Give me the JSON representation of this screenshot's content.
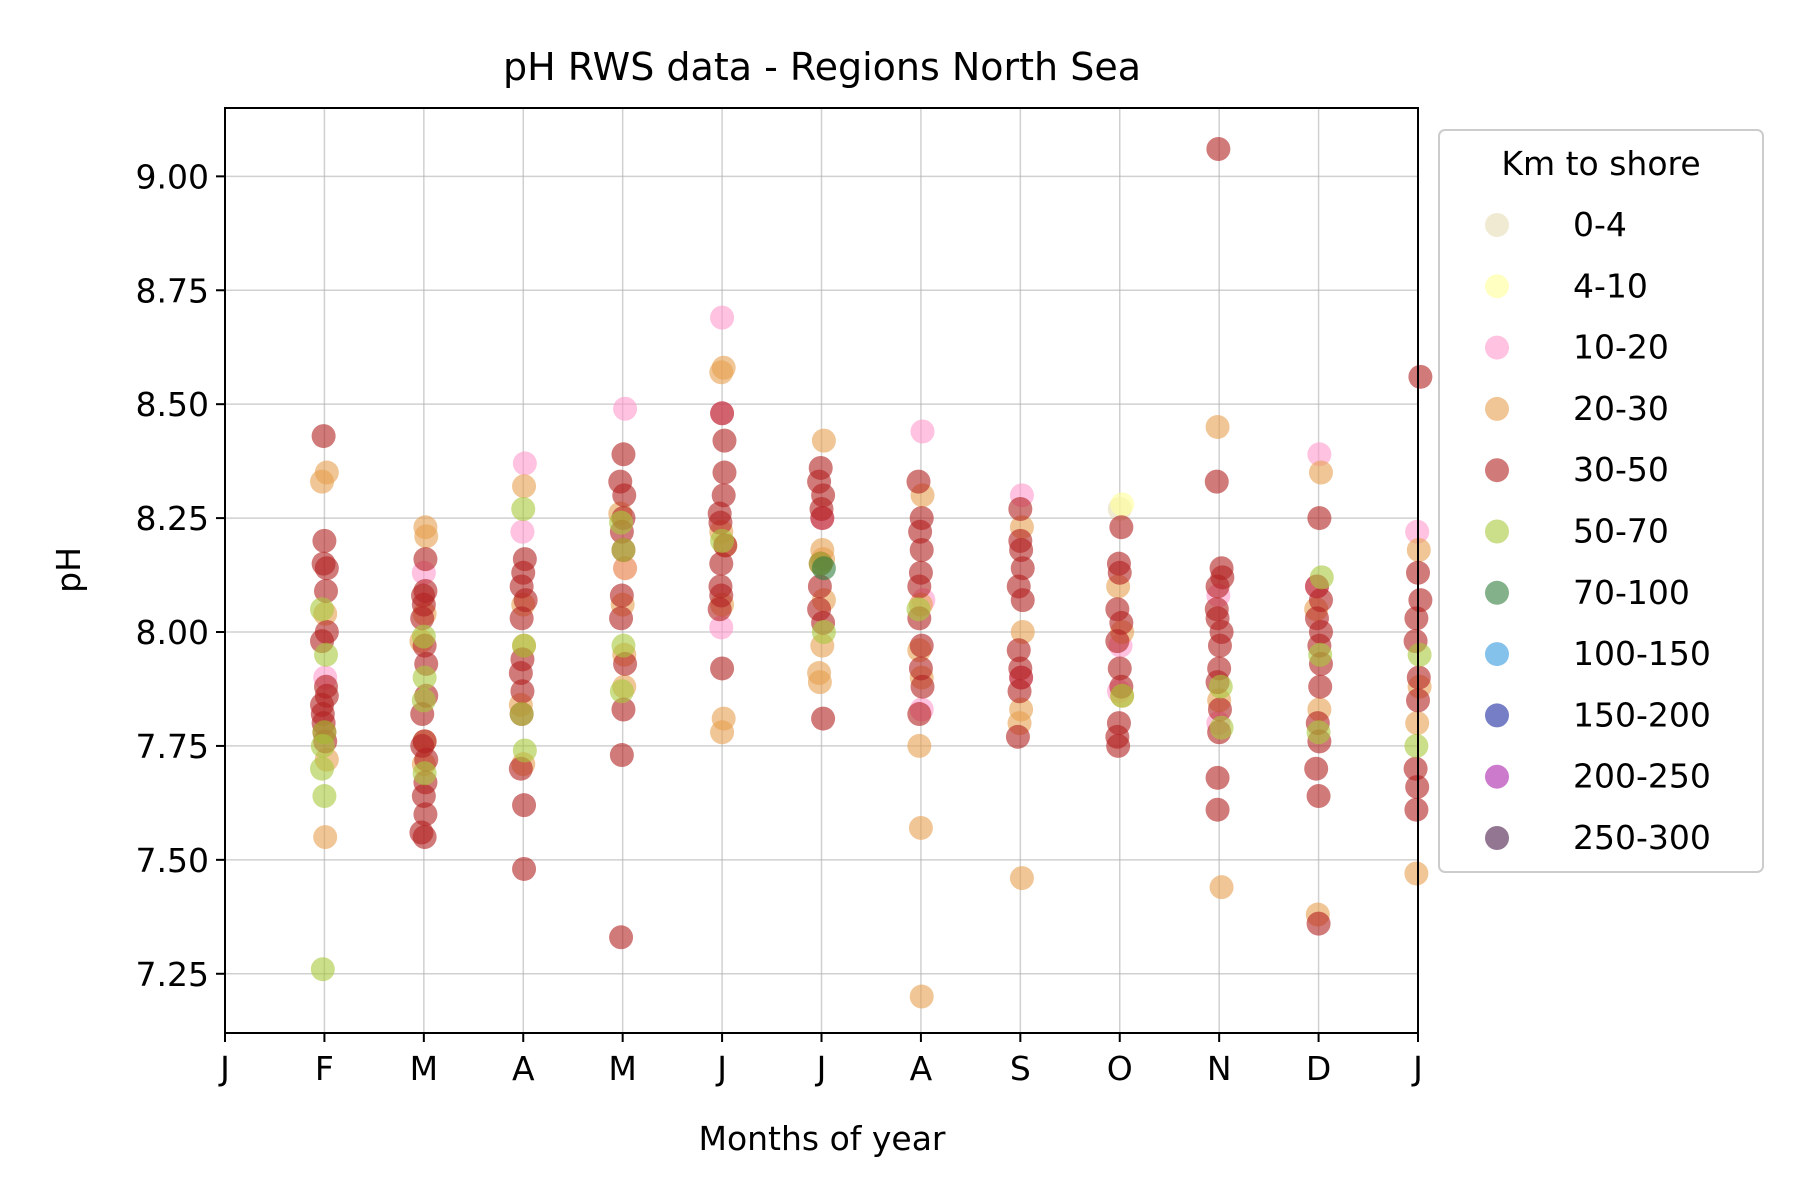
{
  "chart_data": {
    "type": "scatter",
    "title": "pH RWS data - Regions North Sea",
    "xlabel": "Months of year",
    "ylabel": "pH",
    "x_ticks": [
      "J",
      "F",
      "M",
      "A",
      "M",
      "J",
      "J",
      "A",
      "S",
      "O",
      "N",
      "D",
      "J"
    ],
    "xlim": [
      0,
      12
    ],
    "ylim": [
      7.12,
      9.15
    ],
    "y_ticks": [
      "7.25",
      "7.50",
      "7.75",
      "8.00",
      "8.25",
      "8.50",
      "8.75",
      "9.00"
    ],
    "y_tick_values": [
      7.25,
      7.5,
      7.75,
      8.0,
      8.25,
      8.5,
      8.75,
      9.0
    ],
    "grid": true,
    "legend_title": "Km to shore",
    "legend_position": "outside-right",
    "series": [
      {
        "name": "0-4",
        "color": "#e6dcb4",
        "points": [
          [
            9.0,
            8.27
          ]
        ]
      },
      {
        "name": "4-10",
        "color": "#ffff99",
        "points": [
          [
            9.0,
            8.28
          ]
        ]
      },
      {
        "name": "10-20",
        "color": "#ff99cc",
        "points": [
          [
            1.0,
            7.9
          ],
          [
            2.0,
            8.13
          ],
          [
            3.0,
            8.22
          ],
          [
            3.0,
            8.37
          ],
          [
            4.0,
            8.49
          ],
          [
            4.0,
            8.14
          ],
          [
            5.0,
            8.69
          ],
          [
            5.0,
            8.48
          ],
          [
            5.0,
            8.01
          ],
          [
            6.0,
            8.25
          ],
          [
            7.0,
            8.44
          ],
          [
            7.0,
            8.07
          ],
          [
            7.0,
            7.83
          ],
          [
            8.0,
            8.3
          ],
          [
            8.0,
            7.9
          ],
          [
            9.0,
            7.97
          ],
          [
            9.0,
            7.87
          ],
          [
            10.0,
            8.08
          ],
          [
            10.0,
            7.8
          ],
          [
            11.0,
            8.39
          ],
          [
            11.0,
            8.1
          ],
          [
            12.0,
            8.22
          ]
        ]
      },
      {
        "name": "20-30",
        "color": "#e8a050",
        "points": [
          [
            1.0,
            8.35
          ],
          [
            1.0,
            8.33
          ],
          [
            1.0,
            8.04
          ],
          [
            1.0,
            7.72
          ],
          [
            1.0,
            7.55
          ],
          [
            2.0,
            8.23
          ],
          [
            2.0,
            8.21
          ],
          [
            2.0,
            8.04
          ],
          [
            2.0,
            7.98
          ],
          [
            2.0,
            7.76
          ],
          [
            2.0,
            7.71
          ],
          [
            3.0,
            8.32
          ],
          [
            3.0,
            8.06
          ],
          [
            3.0,
            7.97
          ],
          [
            3.0,
            7.84
          ],
          [
            3.0,
            7.71
          ],
          [
            4.0,
            8.26
          ],
          [
            4.0,
            8.14
          ],
          [
            4.0,
            8.06
          ],
          [
            4.0,
            7.95
          ],
          [
            4.0,
            7.88
          ],
          [
            5.0,
            8.58
          ],
          [
            5.0,
            8.57
          ],
          [
            5.0,
            8.22
          ],
          [
            5.0,
            8.19
          ],
          [
            5.0,
            8.06
          ],
          [
            5.0,
            7.81
          ],
          [
            5.0,
            7.78
          ],
          [
            6.0,
            8.42
          ],
          [
            6.0,
            8.18
          ],
          [
            6.0,
            8.16
          ],
          [
            6.0,
            8.07
          ],
          [
            6.0,
            7.97
          ],
          [
            6.0,
            7.91
          ],
          [
            6.0,
            7.89
          ],
          [
            7.0,
            8.3
          ],
          [
            7.0,
            8.06
          ],
          [
            7.0,
            7.96
          ],
          [
            7.0,
            7.9
          ],
          [
            7.0,
            7.75
          ],
          [
            7.0,
            7.57
          ],
          [
            7.0,
            7.2
          ],
          [
            8.0,
            8.23
          ],
          [
            8.0,
            8.0
          ],
          [
            8.0,
            7.83
          ],
          [
            8.0,
            7.8
          ],
          [
            8.0,
            7.46
          ],
          [
            9.0,
            8.1
          ],
          [
            9.0,
            8.0
          ],
          [
            9.0,
            7.86
          ],
          [
            10.0,
            8.45
          ],
          [
            10.0,
            7.85
          ],
          [
            10.0,
            7.44
          ],
          [
            11.0,
            8.35
          ],
          [
            11.0,
            8.05
          ],
          [
            11.0,
            7.83
          ],
          [
            11.0,
            7.38
          ],
          [
            12.0,
            8.18
          ],
          [
            12.0,
            7.88
          ],
          [
            12.0,
            7.47
          ],
          [
            12.0,
            7.8
          ]
        ]
      },
      {
        "name": "30-50",
        "color": "#b22222",
        "points": [
          [
            1.0,
            8.43
          ],
          [
            1.0,
            8.2
          ],
          [
            1.0,
            8.15
          ],
          [
            1.0,
            8.14
          ],
          [
            1.0,
            8.09
          ],
          [
            1.0,
            8.0
          ],
          [
            1.0,
            7.98
          ],
          [
            1.0,
            7.88
          ],
          [
            1.0,
            7.86
          ],
          [
            1.0,
            7.84
          ],
          [
            1.0,
            7.82
          ],
          [
            1.0,
            7.8
          ],
          [
            1.0,
            7.78
          ],
          [
            1.0,
            7.76
          ],
          [
            2.0,
            8.16
          ],
          [
            2.0,
            8.09
          ],
          [
            2.0,
            8.08
          ],
          [
            2.0,
            8.06
          ],
          [
            2.0,
            8.03
          ],
          [
            2.0,
            7.97
          ],
          [
            2.0,
            7.93
          ],
          [
            2.0,
            7.86
          ],
          [
            2.0,
            7.82
          ],
          [
            2.0,
            7.76
          ],
          [
            2.0,
            7.75
          ],
          [
            2.0,
            7.72
          ],
          [
            2.0,
            7.67
          ],
          [
            2.0,
            7.64
          ],
          [
            2.0,
            7.6
          ],
          [
            2.0,
            7.56
          ],
          [
            2.0,
            7.55
          ],
          [
            3.0,
            8.16
          ],
          [
            3.0,
            8.13
          ],
          [
            3.0,
            8.1
          ],
          [
            3.0,
            8.07
          ],
          [
            3.0,
            8.03
          ],
          [
            3.0,
            7.94
          ],
          [
            3.0,
            7.91
          ],
          [
            3.0,
            7.87
          ],
          [
            3.0,
            7.82
          ],
          [
            3.0,
            7.7
          ],
          [
            3.0,
            7.62
          ],
          [
            3.0,
            7.48
          ],
          [
            4.0,
            8.39
          ],
          [
            4.0,
            8.33
          ],
          [
            4.0,
            8.3
          ],
          [
            4.0,
            8.25
          ],
          [
            4.0,
            8.22
          ],
          [
            4.0,
            8.18
          ],
          [
            4.0,
            8.08
          ],
          [
            4.0,
            8.03
          ],
          [
            4.0,
            7.93
          ],
          [
            4.0,
            7.83
          ],
          [
            4.0,
            7.73
          ],
          [
            4.0,
            7.33
          ],
          [
            5.0,
            8.48
          ],
          [
            5.0,
            8.42
          ],
          [
            5.0,
            8.35
          ],
          [
            5.0,
            8.3
          ],
          [
            5.0,
            8.26
          ],
          [
            5.0,
            8.24
          ],
          [
            5.0,
            8.19
          ],
          [
            5.0,
            8.15
          ],
          [
            5.0,
            8.1
          ],
          [
            5.0,
            8.08
          ],
          [
            5.0,
            8.05
          ],
          [
            5.0,
            7.92
          ],
          [
            6.0,
            8.36
          ],
          [
            6.0,
            8.33
          ],
          [
            6.0,
            8.3
          ],
          [
            6.0,
            8.27
          ],
          [
            6.0,
            8.25
          ],
          [
            6.0,
            8.15
          ],
          [
            6.0,
            8.1
          ],
          [
            6.0,
            8.05
          ],
          [
            6.0,
            8.02
          ],
          [
            6.0,
            7.81
          ],
          [
            7.0,
            8.33
          ],
          [
            7.0,
            8.25
          ],
          [
            7.0,
            8.22
          ],
          [
            7.0,
            8.18
          ],
          [
            7.0,
            8.13
          ],
          [
            7.0,
            8.1
          ],
          [
            7.0,
            8.03
          ],
          [
            7.0,
            7.97
          ],
          [
            7.0,
            7.92
          ],
          [
            7.0,
            7.88
          ],
          [
            7.0,
            7.82
          ],
          [
            8.0,
            8.27
          ],
          [
            8.0,
            8.2
          ],
          [
            8.0,
            8.18
          ],
          [
            8.0,
            8.14
          ],
          [
            8.0,
            8.1
          ],
          [
            8.0,
            8.07
          ],
          [
            8.0,
            7.96
          ],
          [
            8.0,
            7.92
          ],
          [
            8.0,
            7.9
          ],
          [
            8.0,
            7.87
          ],
          [
            8.0,
            7.77
          ],
          [
            9.0,
            8.23
          ],
          [
            9.0,
            8.15
          ],
          [
            9.0,
            8.13
          ],
          [
            9.0,
            8.05
          ],
          [
            9.0,
            8.02
          ],
          [
            9.0,
            7.98
          ],
          [
            9.0,
            7.92
          ],
          [
            9.0,
            7.88
          ],
          [
            9.0,
            7.8
          ],
          [
            9.0,
            7.77
          ],
          [
            9.0,
            7.75
          ],
          [
            10.0,
            8.33
          ],
          [
            10.0,
            8.14
          ],
          [
            10.0,
            8.12
          ],
          [
            10.0,
            8.1
          ],
          [
            10.0,
            8.05
          ],
          [
            10.0,
            8.03
          ],
          [
            10.0,
            8.0
          ],
          [
            10.0,
            7.97
          ],
          [
            10.0,
            7.92
          ],
          [
            10.0,
            7.89
          ],
          [
            10.0,
            7.83
          ],
          [
            10.0,
            7.78
          ],
          [
            10.0,
            7.68
          ],
          [
            10.0,
            7.61
          ],
          [
            11.0,
            8.25
          ],
          [
            11.0,
            8.1
          ],
          [
            11.0,
            8.07
          ],
          [
            11.0,
            8.03
          ],
          [
            11.0,
            8.0
          ],
          [
            11.0,
            7.97
          ],
          [
            11.0,
            7.93
          ],
          [
            11.0,
            7.88
          ],
          [
            11.0,
            7.8
          ],
          [
            11.0,
            7.76
          ],
          [
            11.0,
            7.7
          ],
          [
            11.0,
            7.64
          ],
          [
            11.0,
            7.36
          ],
          [
            12.0,
            8.56
          ],
          [
            12.0,
            8.13
          ],
          [
            12.0,
            8.07
          ],
          [
            12.0,
            8.03
          ],
          [
            12.0,
            7.98
          ],
          [
            12.0,
            7.9
          ],
          [
            12.0,
            7.85
          ],
          [
            12.0,
            7.7
          ],
          [
            12.0,
            7.66
          ],
          [
            12.0,
            7.61
          ],
          [
            10.0,
            9.06
          ]
        ]
      },
      {
        "name": "50-70",
        "color": "#a8c83c",
        "points": [
          [
            1.0,
            8.05
          ],
          [
            1.0,
            7.95
          ],
          [
            1.0,
            7.78
          ],
          [
            1.0,
            7.75
          ],
          [
            1.0,
            7.7
          ],
          [
            1.0,
            7.64
          ],
          [
            1.0,
            7.26
          ],
          [
            2.0,
            7.99
          ],
          [
            2.0,
            7.9
          ],
          [
            2.0,
            7.85
          ],
          [
            2.0,
            7.69
          ],
          [
            3.0,
            8.27
          ],
          [
            3.0,
            7.97
          ],
          [
            3.0,
            7.82
          ],
          [
            3.0,
            7.74
          ],
          [
            4.0,
            8.24
          ],
          [
            4.0,
            8.18
          ],
          [
            4.0,
            7.97
          ],
          [
            4.0,
            7.87
          ],
          [
            5.0,
            8.2
          ],
          [
            6.0,
            8.15
          ],
          [
            6.0,
            8.0
          ],
          [
            7.0,
            8.05
          ],
          [
            9.0,
            7.86
          ],
          [
            10.0,
            7.88
          ],
          [
            10.0,
            7.79
          ],
          [
            11.0,
            8.12
          ],
          [
            11.0,
            7.95
          ],
          [
            11.0,
            7.78
          ],
          [
            12.0,
            7.75
          ],
          [
            12.0,
            7.95
          ]
        ]
      },
      {
        "name": "70-100",
        "color": "#2e7d3c",
        "points": [
          [
            6.0,
            8.14
          ]
        ]
      },
      {
        "name": "100-150",
        "color": "#3399dd",
        "points": []
      },
      {
        "name": "150-200",
        "color": "#1a2aa0",
        "points": []
      },
      {
        "name": "200-250",
        "color": "#aa22aa",
        "points": []
      },
      {
        "name": "250-300",
        "color": "#4a1a4a",
        "points": []
      }
    ]
  }
}
